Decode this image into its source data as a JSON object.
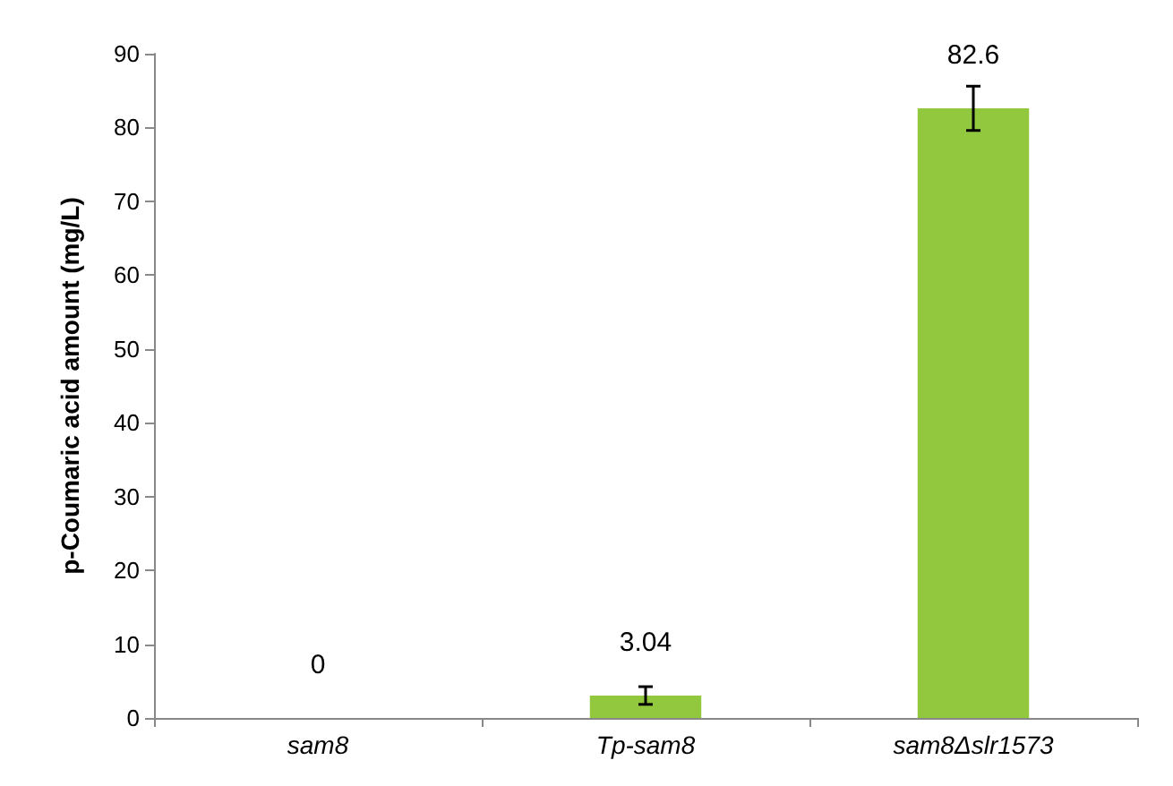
{
  "chart_data": {
    "type": "bar",
    "ylabel": "p-Coumaric acid amount (mg/L)",
    "categories": [
      "sam8",
      "Tp-sam8",
      "sam8Δslr1573"
    ],
    "values": [
      0,
      3.04,
      82.6
    ],
    "errors": [
      null,
      1.2,
      3
    ],
    "color": "#92c83e",
    "ylim": [
      0,
      90
    ],
    "yticks": [
      0,
      10,
      20,
      30,
      40,
      50,
      60,
      70,
      80,
      90
    ],
    "grid": false,
    "data_labels": true
  }
}
